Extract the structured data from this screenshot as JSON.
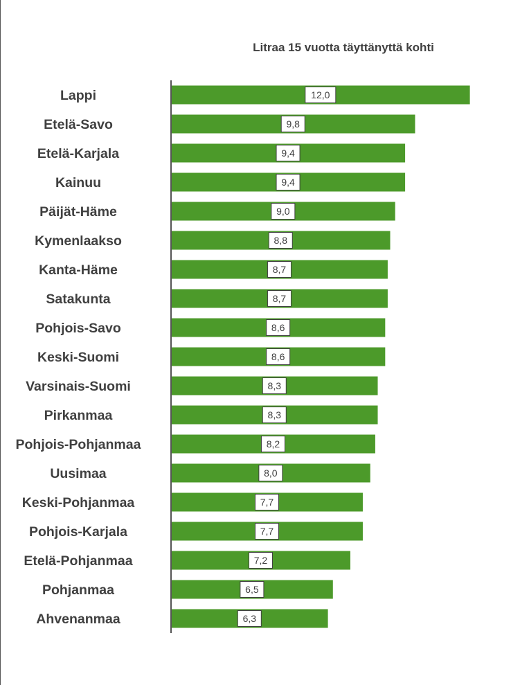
{
  "chart_data": {
    "type": "bar",
    "orientation": "horizontal",
    "title": "Litraa 15 vuotta täyttänyttä kohti",
    "xlabel": "",
    "ylabel": "",
    "xlim": [
      0,
      12.4
    ],
    "grid": false,
    "legend": "none",
    "categories": [
      "Lappi",
      "Etelä-Savo",
      "Etelä-Karjala",
      "Kainuu",
      "Päijät-Häme",
      "Kymenlaakso",
      "Kanta-Häme",
      "Satakunta",
      "Pohjois-Savo",
      "Keski-Suomi",
      "Varsinais-Suomi",
      "Pirkanmaa",
      "Pohjois-Pohjanmaa",
      "Uusimaa",
      "Keski-Pohjanmaa",
      "Pohjois-Karjala",
      "Etelä-Pohjanmaa",
      "Pohjanmaa",
      "Ahvenanmaa"
    ],
    "values": [
      12.0,
      9.8,
      9.4,
      9.4,
      9.0,
      8.8,
      8.7,
      8.7,
      8.6,
      8.6,
      8.3,
      8.3,
      8.2,
      8.0,
      7.7,
      7.7,
      7.2,
      6.5,
      6.3
    ],
    "value_labels": [
      "12,0",
      "9,8",
      "9,4",
      "9,4",
      "9,0",
      "8,8",
      "8,7",
      "8,7",
      "8,6",
      "8,6",
      "8,3",
      "8,3",
      "8,2",
      "8,0",
      "7,7",
      "7,7",
      "7,2",
      "6,5",
      "6,3"
    ],
    "bar_color": "#4c9a2a"
  }
}
